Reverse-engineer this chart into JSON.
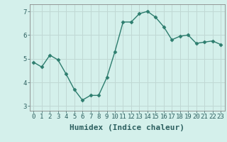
{
  "x": [
    0,
    1,
    2,
    3,
    4,
    5,
    6,
    7,
    8,
    9,
    10,
    11,
    12,
    13,
    14,
    15,
    16,
    17,
    18,
    19,
    20,
    21,
    22,
    23
  ],
  "y": [
    4.85,
    4.65,
    5.15,
    4.95,
    4.35,
    3.7,
    3.25,
    3.45,
    3.45,
    4.2,
    5.3,
    6.55,
    6.55,
    6.9,
    7.0,
    6.75,
    6.35,
    5.8,
    5.95,
    6.0,
    5.65,
    5.7,
    5.75,
    5.6
  ],
  "line_color": "#2d7d6e",
  "marker": "D",
  "marker_size": 2.5,
  "bg_color": "#d4f0eb",
  "grid_color": "#c0d8d4",
  "xlabel": "Humidex (Indice chaleur)",
  "ylabel": "",
  "ylim": [
    2.8,
    7.3
  ],
  "xlim": [
    -0.5,
    23.5
  ],
  "yticks": [
    3,
    4,
    5,
    6,
    7
  ],
  "xticks": [
    0,
    1,
    2,
    3,
    4,
    5,
    6,
    7,
    8,
    9,
    10,
    11,
    12,
    13,
    14,
    15,
    16,
    17,
    18,
    19,
    20,
    21,
    22,
    23
  ],
  "xtick_labels": [
    "0",
    "1",
    "2",
    "3",
    "4",
    "5",
    "6",
    "7",
    "8",
    "9",
    "10",
    "11",
    "12",
    "13",
    "14",
    "15",
    "16",
    "17",
    "18",
    "19",
    "20",
    "21",
    "22",
    "23"
  ],
  "tick_fontsize": 6.5,
  "xlabel_fontsize": 8,
  "xlabel_fontweight": "bold",
  "linewidth": 1.0
}
